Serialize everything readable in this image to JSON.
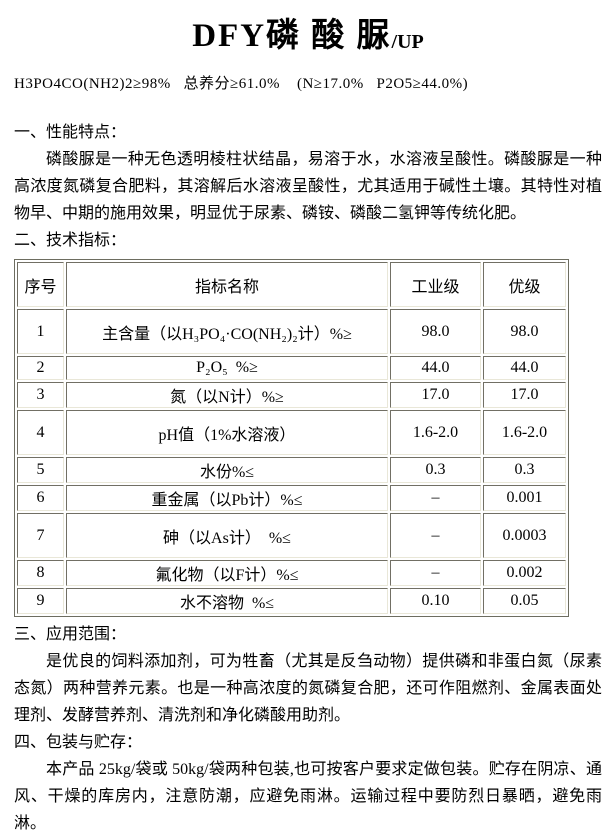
{
  "header": {
    "title": "DFY磷 酸 脲",
    "title_suffix": "/UP",
    "formula_line": "H3PO4CO(NH2)2≥98%   总养分≥61.0%    (N≥17.0%   P2O5≥44.0%)"
  },
  "sections": [
    {
      "heading": "一、性能特点：",
      "body": "磷酸脲是一种无色透明棱柱状结晶，易溶于水，水溶液呈酸性。磷酸脲是一种高浓度氮磷复合肥料，其溶解后水溶液呈酸性，尤其适用于碱性土壤。其特性对植物早、中期的施用效果，明显优于尿素、磷铵、磷酸二氢钾等传统化肥。"
    },
    {
      "heading": "二、技术指标："
    },
    {
      "heading": "三、应用范围：",
      "body": "是优良的饲料添加剂，可为牲畜（尤其是反刍动物）提供磷和非蛋白氮（尿素态氮）两种营养元素。也是一种高浓度的氮磷复合肥，还可作阻燃剂、金属表面处理剂、发酵营养剂、清洗剂和净化磷酸用助剂。"
    },
    {
      "heading": "四、包装与贮存：",
      "body": "本产品 25kg/袋或 50kg/袋两种包装,也可按客户要求定做包装。贮存在阴凉、通风、干燥的库房内，注意防潮，应避免雨淋。运输过程中要防烈日暴晒，避免雨淋。"
    }
  ],
  "table": {
    "headers": [
      "序号",
      "指标名称",
      "工业级",
      "优级"
    ],
    "rows": [
      {
        "no": "1",
        "name": "主含量（以H₃PO₄·CO(NH₂)₂计）%≥",
        "industrial": "98.0",
        "premium": "98.0",
        "tall": true
      },
      {
        "no": "2",
        "name": "P₂O₅  %≥",
        "industrial": "44.0",
        "premium": "44.0",
        "tall": false
      },
      {
        "no": "3",
        "name": "氮（以N计）%≥",
        "industrial": "17.0",
        "premium": "17.0",
        "tall": false
      },
      {
        "no": "4",
        "name": "pH值（1%水溶液）",
        "industrial": "1.6-2.0",
        "premium": "1.6-2.0",
        "tall": true
      },
      {
        "no": "5",
        "name": "水份%≤",
        "industrial": "0.3",
        "premium": "0.3",
        "tall": false
      },
      {
        "no": "6",
        "name": "重金属（以Pb计）%≤",
        "industrial": "–",
        "premium": "0.001",
        "tall": false
      },
      {
        "no": "7",
        "name": "砷（以As计）  %≤",
        "industrial": "–",
        "premium": "0.0003",
        "tall": true
      },
      {
        "no": "8",
        "name": "氟化物（以F计）%≤",
        "industrial": "–",
        "premium": "0.002",
        "tall": false
      },
      {
        "no": "9",
        "name": "水不溶物  %≤",
        "industrial": "0.10",
        "premium": "0.05",
        "tall": false
      }
    ]
  }
}
